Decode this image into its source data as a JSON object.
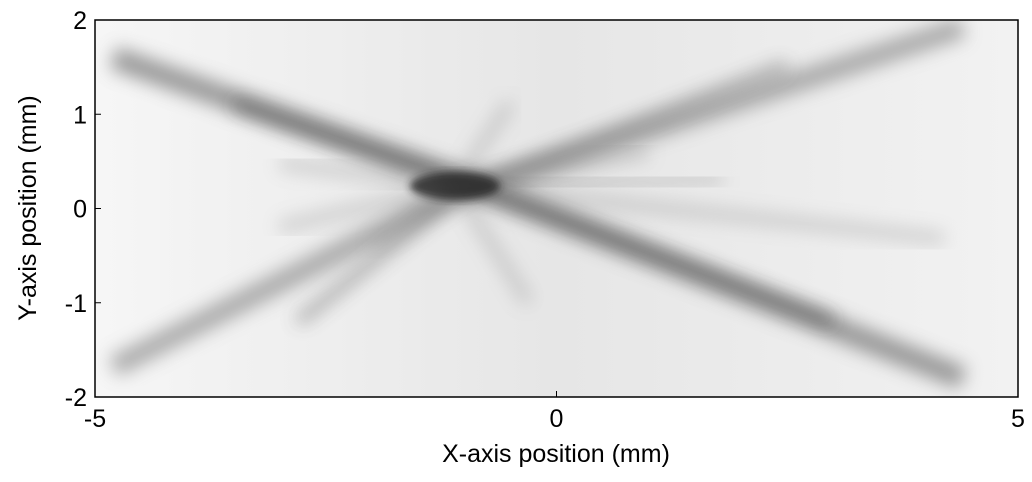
{
  "chart_data": {
    "type": "image",
    "x_label": "X-axis position (mm)",
    "y_label": "Y-axis position (mm)",
    "xlim": [
      -5,
      5
    ],
    "xticks": [
      -5,
      0,
      5
    ],
    "ylim": [
      -2,
      2
    ],
    "yticks": [
      -2,
      -1,
      0,
      1,
      2
    ],
    "colormap": "gray"
  }
}
